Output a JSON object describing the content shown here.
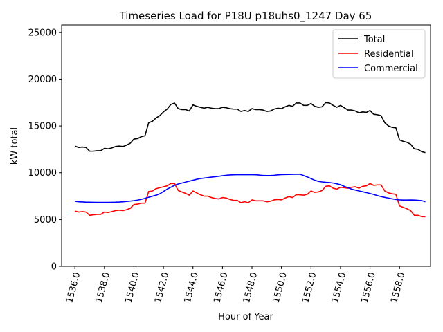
{
  "chart_data": {
    "type": "line",
    "title": "Timeseries Load for P18U p18uhs0_1247  Day 65",
    "xlabel": "Hour of Year",
    "ylabel": "kW total",
    "xlim": [
      1535.1,
      1560.1
    ],
    "ylim": [
      0,
      25800
    ],
    "x_ticks": [
      1536,
      1538,
      1540,
      1542,
      1544,
      1546,
      1548,
      1550,
      1552,
      1554,
      1556,
      1558
    ],
    "x_tick_labels": [
      "1536.0",
      "1538.0",
      "1540.0",
      "1542.0",
      "1544.0",
      "1546.0",
      "1548.0",
      "1550.0",
      "1552.0",
      "1554.0",
      "1556.0",
      "1558.0"
    ],
    "y_ticks": [
      0,
      5000,
      10000,
      15000,
      20000,
      25000
    ],
    "y_tick_labels": [
      "0",
      "5000",
      "10000",
      "15000",
      "20000",
      "25000"
    ],
    "legend_position": "top-right",
    "x": [
      1536.0,
      1536.25,
      1536.5,
      1536.75,
      1537.0,
      1537.25,
      1537.5,
      1537.75,
      1538.0,
      1538.25,
      1538.5,
      1538.75,
      1539.0,
      1539.25,
      1539.5,
      1539.75,
      1540.0,
      1540.25,
      1540.5,
      1540.75,
      1541.0,
      1541.25,
      1541.5,
      1541.75,
      1542.0,
      1542.25,
      1542.5,
      1542.75,
      1543.0,
      1543.25,
      1543.5,
      1543.75,
      1544.0,
      1544.25,
      1544.5,
      1544.75,
      1545.0,
      1545.25,
      1545.5,
      1545.75,
      1546.0,
      1546.25,
      1546.5,
      1546.75,
      1547.0,
      1547.25,
      1547.5,
      1547.75,
      1548.0,
      1548.25,
      1548.5,
      1548.75,
      1549.0,
      1549.25,
      1549.5,
      1549.75,
      1550.0,
      1550.25,
      1550.5,
      1550.75,
      1551.0,
      1551.25,
      1551.5,
      1551.75,
      1552.0,
      1552.25,
      1552.5,
      1552.75,
      1553.0,
      1553.25,
      1553.5,
      1553.75,
      1554.0,
      1554.25,
      1554.5,
      1554.75,
      1555.0,
      1555.25,
      1555.5,
      1555.75,
      1556.0,
      1556.25,
      1556.5,
      1556.75,
      1557.0,
      1557.25,
      1557.5,
      1557.75,
      1558.0,
      1558.25,
      1558.5,
      1558.75,
      1559.0,
      1559.25,
      1559.5,
      1559.75
    ],
    "series": [
      {
        "name": "Total",
        "color": "#000000",
        "values": [
          12850,
          12700,
          12750,
          12700,
          12300,
          12300,
          12350,
          12350,
          12600,
          12550,
          12650,
          12800,
          12850,
          12800,
          12950,
          13150,
          13600,
          13650,
          13850,
          13950,
          15350,
          15500,
          15850,
          16100,
          16500,
          16800,
          17300,
          17450,
          16850,
          16750,
          16750,
          16600,
          17250,
          17100,
          17000,
          16900,
          17000,
          16900,
          16850,
          16850,
          17000,
          16950,
          16850,
          16800,
          16800,
          16550,
          16650,
          16550,
          16850,
          16750,
          16750,
          16700,
          16550,
          16600,
          16800,
          16900,
          16850,
          17050,
          17200,
          17100,
          17450,
          17450,
          17200,
          17200,
          17400,
          17100,
          17000,
          17050,
          17500,
          17450,
          17200,
          17000,
          17200,
          16950,
          16700,
          16700,
          16600,
          16400,
          16500,
          16450,
          16650,
          16250,
          16200,
          16100,
          15350,
          15000,
          14850,
          14800,
          13500,
          13350,
          13250,
          13050,
          12550,
          12500,
          12250,
          12150
        ]
      },
      {
        "name": "Residential",
        "color": "#ff0000",
        "values": [
          5900,
          5800,
          5850,
          5800,
          5450,
          5500,
          5550,
          5550,
          5800,
          5750,
          5850,
          5950,
          6000,
          5950,
          6050,
          6200,
          6600,
          6650,
          6750,
          6750,
          8000,
          8050,
          8300,
          8400,
          8500,
          8600,
          8850,
          8850,
          8100,
          7950,
          7800,
          7600,
          8050,
          7850,
          7650,
          7500,
          7500,
          7350,
          7250,
          7200,
          7350,
          7300,
          7150,
          7050,
          7050,
          6800,
          6900,
          6800,
          7100,
          7000,
          7000,
          7000,
          6900,
          6950,
          7100,
          7150,
          7100,
          7300,
          7450,
          7350,
          7650,
          7650,
          7600,
          7700,
          8050,
          7900,
          7950,
          8100,
          8550,
          8600,
          8350,
          8250,
          8450,
          8400,
          8350,
          8450,
          8500,
          8350,
          8550,
          8600,
          8850,
          8650,
          8700,
          8700,
          8050,
          7850,
          7750,
          7700,
          6450,
          6300,
          6150,
          5950,
          5450,
          5450,
          5300,
          5300
        ]
      },
      {
        "name": "Commercial",
        "color": "#0000ff",
        "values": [
          6950,
          6900,
          6880,
          6860,
          6850,
          6840,
          6830,
          6830,
          6830,
          6830,
          6840,
          6850,
          6870,
          6900,
          6930,
          6970,
          7020,
          7080,
          7160,
          7260,
          7380,
          7490,
          7600,
          7750,
          8000,
          8250,
          8450,
          8650,
          8800,
          8900,
          9000,
          9100,
          9200,
          9300,
          9380,
          9430,
          9480,
          9530,
          9580,
          9620,
          9680,
          9730,
          9760,
          9780,
          9790,
          9790,
          9790,
          9790,
          9790,
          9780,
          9750,
          9710,
          9700,
          9700,
          9730,
          9770,
          9800,
          9810,
          9820,
          9830,
          9840,
          9840,
          9700,
          9550,
          9380,
          9200,
          9080,
          9020,
          8980,
          8950,
          8900,
          8820,
          8720,
          8550,
          8400,
          8250,
          8150,
          8060,
          7970,
          7880,
          7780,
          7680,
          7560,
          7450,
          7370,
          7290,
          7210,
          7150,
          7100,
          7080,
          7080,
          7090,
          7080,
          7060,
          7020,
          6900
        ]
      }
    ]
  }
}
